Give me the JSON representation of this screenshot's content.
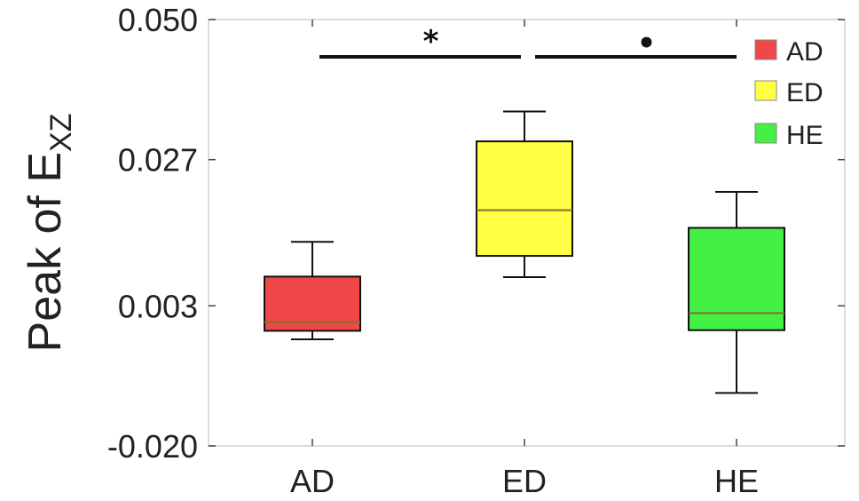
{
  "chart_data": {
    "type": "box",
    "ylabel": "Peak of E",
    "ylabel_subscript": "XZ",
    "ylim": [
      -0.02,
      0.05
    ],
    "yticks": [
      "0.050",
      "0.027",
      "0.003",
      "-0.020"
    ],
    "ytick_values": [
      0.05,
      0.027,
      0.003,
      -0.02
    ],
    "categories": [
      "AD",
      "ED",
      "HE"
    ],
    "grid": false,
    "legend_position": "top-right",
    "series": [
      {
        "name": "AD",
        "color": "#f04848",
        "whisker_low": -0.0025,
        "q1": -0.0011,
        "median": 0.0003,
        "q3": 0.0078,
        "whisker_high": 0.0135
      },
      {
        "name": "ED",
        "color": "#ffff44",
        "whisker_low": 0.0077,
        "q1": 0.0112,
        "median": 0.0187,
        "q3": 0.03,
        "whisker_high": 0.0349
      },
      {
        "name": "HE",
        "color": "#44f044",
        "whisker_low": -0.0113,
        "q1": -0.001,
        "median": 0.0018,
        "q3": 0.0158,
        "whisker_high": 0.0217
      }
    ],
    "significance": [
      {
        "from": "AD",
        "to": "ED",
        "marker": "*"
      },
      {
        "from": "ED",
        "to": "HE",
        "marker": "•"
      }
    ]
  }
}
